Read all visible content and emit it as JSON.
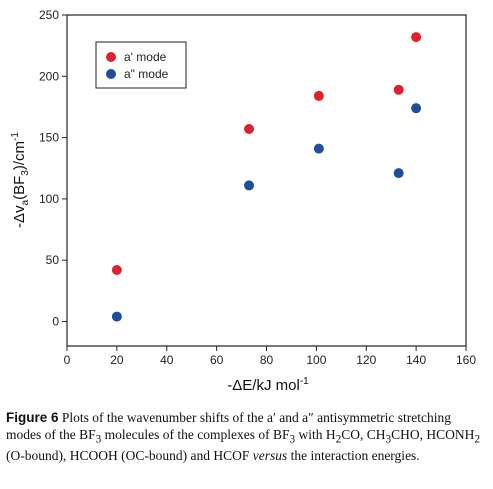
{
  "chart_data": {
    "type": "scatter",
    "xlabel": "-ΔE/kJ mol",
    "xlabel_sup": "-1",
    "ylabel_parts": [
      "-Δv",
      "a",
      "(BF",
      "3",
      ")/cm",
      "-1"
    ],
    "xlim": [
      0,
      160
    ],
    "ylim": [
      -20,
      250
    ],
    "xticks": [
      0,
      20,
      40,
      60,
      80,
      100,
      120,
      140,
      160
    ],
    "yticks": [
      0,
      50,
      100,
      150,
      200,
      250
    ],
    "legend_position": "top-left",
    "grid": false,
    "series": [
      {
        "name": "a' mode",
        "color": "#e0212d",
        "points": [
          [
            20,
            42
          ],
          [
            73,
            157
          ],
          [
            101,
            184
          ],
          [
            133,
            189
          ],
          [
            140,
            232
          ]
        ]
      },
      {
        "name": "a\" mode",
        "color": "#1f4e9c",
        "points": [
          [
            20,
            4
          ],
          [
            73,
            111
          ],
          [
            101,
            141
          ],
          [
            133,
            121
          ],
          [
            140,
            174
          ]
        ]
      }
    ]
  },
  "caption": {
    "label": "Figure 6",
    "part1": "  Plots of the wavenumber shifts of the a′ and a″ antisymmetric stretching modes of the BF",
    "sub1": "3",
    "part2": " molecules of the complexes of BF",
    "sub2": "3",
    "part3": " with H",
    "sub3": "2",
    "part4": "CO, CH",
    "sub4": "3",
    "part5": "CHO, HCONH",
    "sub5": "2",
    "part6": " (O-bound), HCOOH (OC-bound) and HCOF ",
    "italic": "versus",
    "part7": " the interaction energies."
  }
}
